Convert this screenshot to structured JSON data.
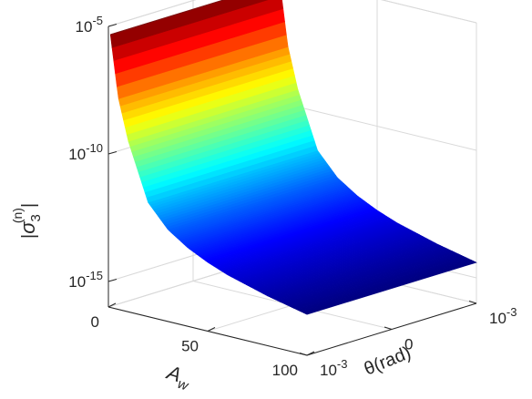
{
  "chart_data": {
    "type": "surface",
    "title": "",
    "xlabel": "θ(rad)",
    "ylabel": "A_w",
    "zlabel": "|σ3(n)|",
    "z_scale": "log",
    "grid": true,
    "colormap": "jet",
    "x_axis": {
      "range": [
        -0.001,
        0.001
      ],
      "ticks": [
        {
          "value": -0.001,
          "mantissa": "10",
          "exponent": "-3"
        },
        {
          "value": 0,
          "label": "0"
        },
        {
          "value": 0.001,
          "mantissa": "10",
          "exponent": "-3"
        }
      ]
    },
    "y_axis": {
      "range": [
        0,
        100
      ],
      "ticks": [
        {
          "value": 0,
          "label": "0"
        },
        {
          "value": 50,
          "label": "50"
        },
        {
          "value": 100,
          "label": "100"
        }
      ]
    },
    "z_axis": {
      "range": [
        1e-16,
        1e-05
      ],
      "ticks": [
        {
          "value": 1e-15,
          "mantissa": "10",
          "exponent": "-15"
        },
        {
          "value": 1e-10,
          "mantissa": "10",
          "exponent": "-10"
        },
        {
          "value": 1e-05,
          "mantissa": "10",
          "exponent": "-5"
        }
      ]
    },
    "surface": {
      "description_of_trend": "z decreases with A_w, roughly constant across theta",
      "A_w": [
        1,
        5,
        10,
        20,
        30,
        40,
        50,
        60,
        70,
        80,
        90,
        100
      ],
      "z_at_A_w": [
        5e-06,
        2e-08,
        5e-10,
        3e-12,
        4e-13,
        1.2e-13,
        5e-14,
        2.5e-14,
        1.5e-14,
        9e-15,
        6e-15,
        4e-15
      ]
    }
  },
  "labels": {
    "y_label_main": "A",
    "y_label_sub": "w",
    "x_label": "θ(rad)",
    "z_label_sigma": "σ",
    "z_label_sub": "3",
    "z_label_sup": "(n)"
  }
}
